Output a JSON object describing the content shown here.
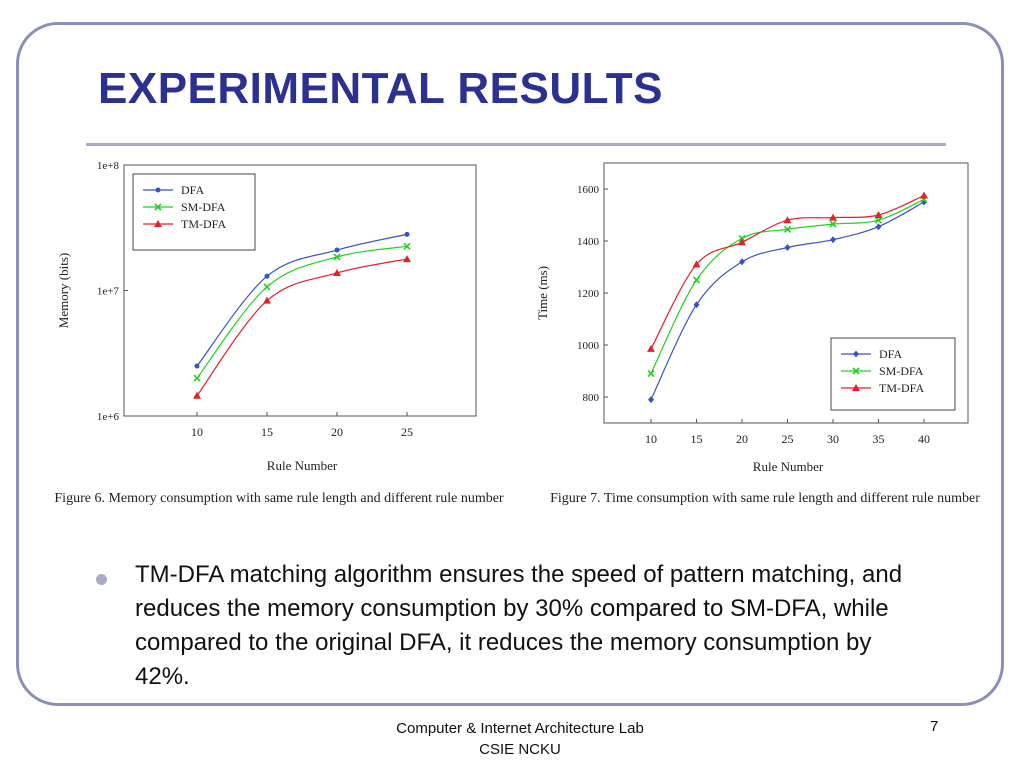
{
  "slide": {
    "title": "EXPERIMENTAL RESULTS",
    "bullet": "TM-DFA matching algorithm ensures the speed of pattern matching, and reduces the memory consumption by 30% compared to SM-DFA, while compared to the original DFA, it reduces the memory consumption by 42%.",
    "footer_line1": "Computer & Internet Architecture Lab",
    "footer_line2": "CSIE NCKU",
    "page_number": "7"
  },
  "captions": {
    "fig6": "Figure 6.    Memory consumption with same rule length and different rule number",
    "fig7": "Figure 7.    Time consumption with same rule length and different rule number"
  },
  "colors": {
    "title": "#2b3191",
    "DFA": "#3a52c4",
    "SM-DFA": "#22d11f",
    "TM-DFA": "#e0232a"
  },
  "chart_data": [
    {
      "type": "line",
      "xlabel": "Rule Number",
      "ylabel": "Memory (bits)",
      "yscale": "log",
      "ylim": [
        1000000,
        100000000
      ],
      "y_ticks": [
        1000000,
        10000000,
        100000000
      ],
      "y_tick_labels": [
        "1e+6",
        "1e+7",
        "1e+8"
      ],
      "x": [
        10,
        15,
        20,
        25
      ],
      "legend_position": "top-left",
      "grid": false,
      "series": [
        {
          "name": "DFA",
          "marker": "dot",
          "values": [
            2500000,
            13000000,
            21000000,
            28000000
          ]
        },
        {
          "name": "SM-DFA",
          "marker": "x",
          "values": [
            2000000,
            10700000,
            18500000,
            22500000
          ]
        },
        {
          "name": "TM-DFA",
          "marker": "triangle",
          "values": [
            1450000,
            8300000,
            13800000,
            17800000
          ]
        }
      ]
    },
    {
      "type": "line",
      "xlabel": "Rule Number",
      "ylabel": "Time (ms)",
      "ylim": [
        700,
        1700
      ],
      "y_ticks": [
        800,
        1000,
        1200,
        1400,
        1600
      ],
      "x": [
        10,
        15,
        20,
        25,
        30,
        35,
        40
      ],
      "legend_position": "bottom-right",
      "grid": false,
      "series": [
        {
          "name": "DFA",
          "marker": "diamond",
          "values": [
            790,
            1155,
            1320,
            1375,
            1405,
            1455,
            1550
          ]
        },
        {
          "name": "SM-DFA",
          "marker": "x",
          "values": [
            890,
            1250,
            1410,
            1445,
            1465,
            1480,
            1560
          ]
        },
        {
          "name": "TM-DFA",
          "marker": "triangle",
          "values": [
            985,
            1310,
            1395,
            1480,
            1490,
            1500,
            1575
          ]
        }
      ]
    }
  ]
}
